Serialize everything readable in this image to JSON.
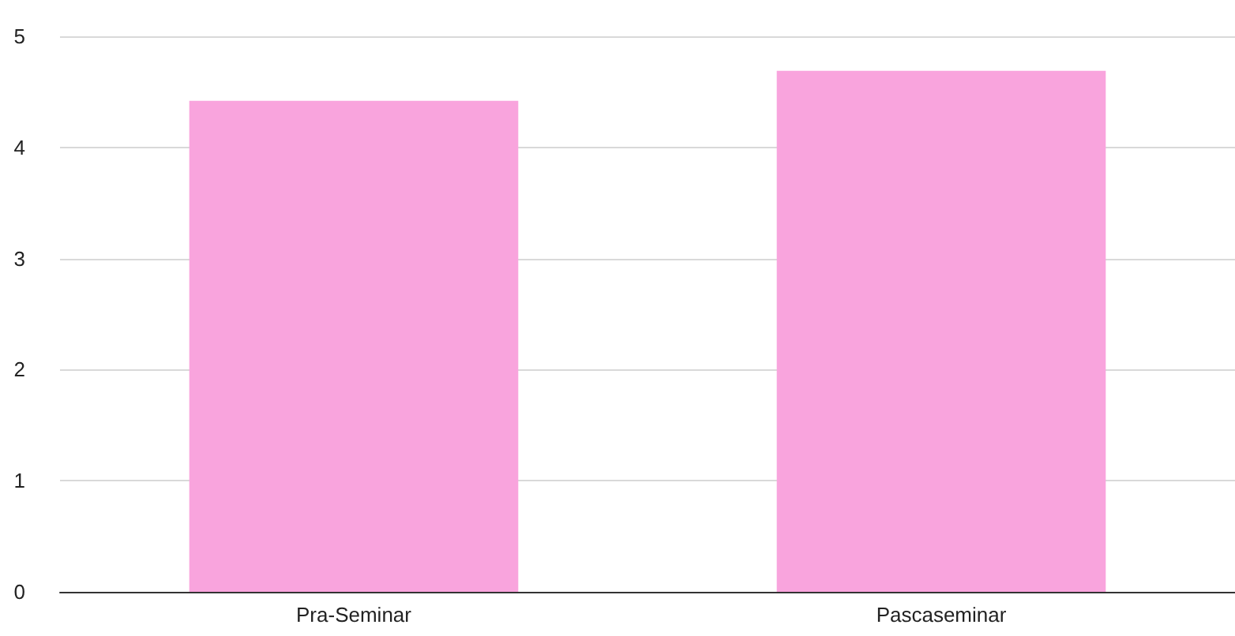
{
  "chart_data": {
    "type": "bar",
    "categories": [
      "Pra-Seminar",
      "Pascaseminar"
    ],
    "values": [
      4.42,
      4.69
    ],
    "color": "#f9a4dd",
    "ylim": [
      0,
      5
    ],
    "yticks": [
      0,
      1,
      2,
      3,
      4,
      5
    ],
    "grid": "y"
  }
}
